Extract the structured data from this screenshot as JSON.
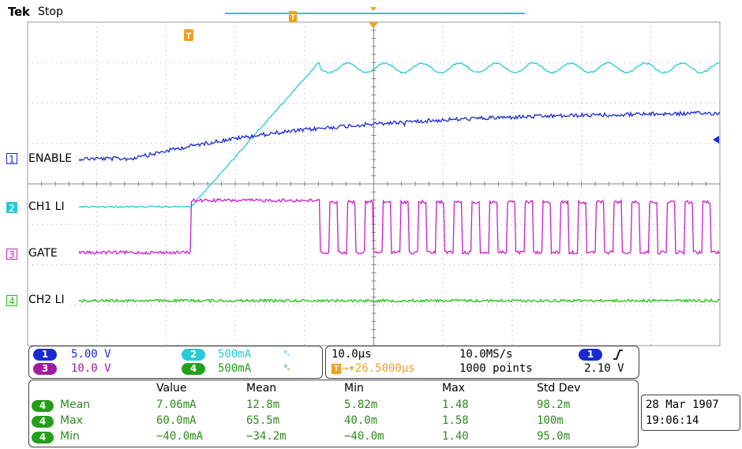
{
  "header": {
    "brand": "Tek",
    "status": "Stop"
  },
  "trigger_markers": {
    "t_icon": "T",
    "position_icon": "trigger-position-marker"
  },
  "channels": [
    {
      "id": "1",
      "label": "ENABLE",
      "color": "#1a2ad0"
    },
    {
      "id": "2",
      "label": "CH1 LI",
      "color": "#2ac8d8"
    },
    {
      "id": "3",
      "label": "GATE",
      "color": "#c81ec8"
    },
    {
      "id": "4",
      "label": "CH2 LI",
      "color": "#22c01a"
    }
  ],
  "scale_panel": {
    "ch1_scale": "5.00 V",
    "ch2_scale": "500mA",
    "ch3_scale": "10.0 V",
    "ch4_scale": "500mA",
    "bw_icon": "bandwidth-limit-icon"
  },
  "timebase_panel": {
    "time_div": "10.0µs",
    "sample_rate": "10.0MS/s",
    "trigger_delay": "26.5000µs",
    "record_length": "1000 points",
    "trigger_source": "1",
    "trigger_level": "2.10 V",
    "trigger_slope_icon": "rising-edge-icon"
  },
  "measurements": {
    "headers": [
      "Value",
      "Mean",
      "Min",
      "Max",
      "Std Dev"
    ],
    "rows": [
      {
        "ch": "4",
        "name": "Mean",
        "value": "7.06mA",
        "mean": "12.8m",
        "min": "5.82m",
        "max": "1.48",
        "std": "98.2m"
      },
      {
        "ch": "4",
        "name": "Max",
        "value": "60.0mA",
        "mean": "65.5m",
        "min": "40.0m",
        "max": "1.58",
        "std": "100m"
      },
      {
        "ch": "4",
        "name": "Min",
        "value": "−40.0mA",
        "mean": "−34.2m",
        "min": "−40.0m",
        "max": "1.40",
        "std": "95.0m"
      }
    ]
  },
  "datetime": {
    "date": "28 Mar 1907",
    "time": "19:06:14"
  }
}
